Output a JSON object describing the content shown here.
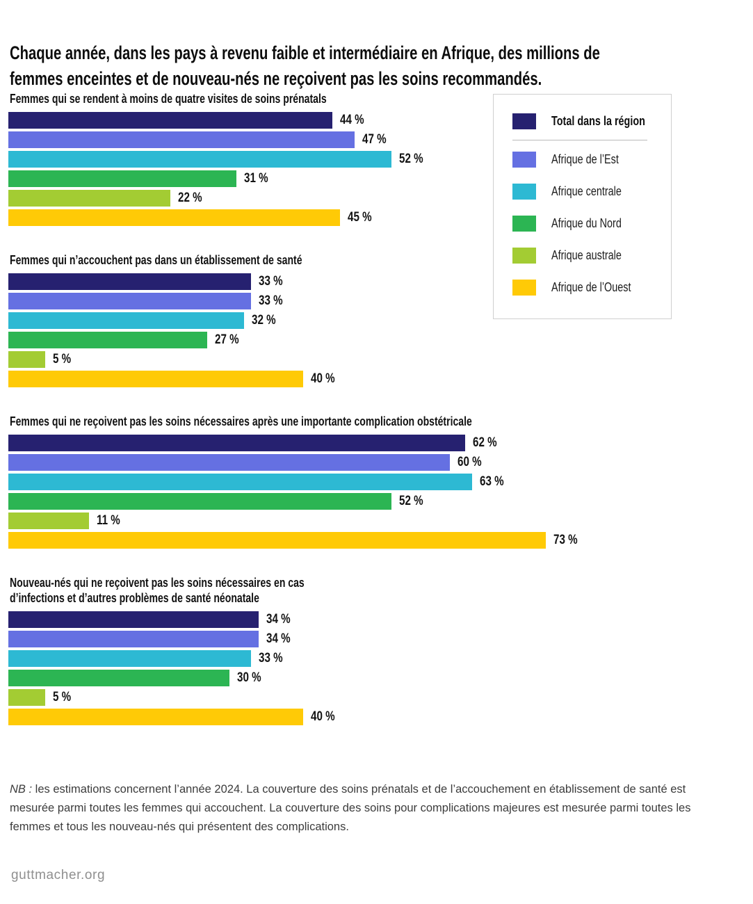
{
  "title": {
    "lines": [
      "Chaque année, dans les pays à revenu faible et intermédiaire en Afrique, des millions de",
      "femmes enceintes et de nouveau-nés ne reçoivent pas les soins recommandés."
    ]
  },
  "chart_data": {
    "type": "bar",
    "orientation": "horizontal",
    "unit": "%",
    "value_suffix": " %",
    "xlim": [
      0,
      100
    ],
    "grid": false,
    "legend_position": "top-right",
    "regions": [
      {
        "name": "Total dans la région",
        "color": "#262170",
        "emphasis": true
      },
      {
        "name": "Afrique de l’Est",
        "color": "#6570e2"
      },
      {
        "name": "Afrique centrale",
        "color": "#2db9d3"
      },
      {
        "name": "Afrique du Nord",
        "color": "#2cb553"
      },
      {
        "name": "Afrique australe",
        "color": "#a3cc33"
      },
      {
        "name": "Afrique de l’Ouest",
        "color": "#ffca06"
      }
    ],
    "groups": [
      {
        "label_lines": [
          "Femmes qui se rendent à moins de quatre visites de soins prénatals"
        ],
        "values": [
          44,
          47,
          52,
          31,
          22,
          45
        ]
      },
      {
        "label_lines": [
          "Femmes qui n’accouchent pas dans un établissement de santé"
        ],
        "values": [
          33,
          33,
          32,
          27,
          5,
          40
        ]
      },
      {
        "label_lines": [
          "Femmes qui ne reçoivent pas les soins nécessaires après une importante complication obstétricale"
        ],
        "values": [
          62,
          60,
          63,
          52,
          11,
          73
        ]
      },
      {
        "label_lines": [
          "Nouveau-nés qui ne reçoivent pas les soins nécessaires en cas",
          "d’infections et d’autres problèmes de santé néonatale"
        ],
        "values": [
          34,
          34,
          33,
          30,
          5,
          40
        ]
      }
    ]
  },
  "note": {
    "prefix": "NB :",
    "body": " les estimations concernent l’année 2024. La couverture des soins prénatals et de l’accouchement en établissement de santé est mesurée parmi toutes les femmes qui accouchent. La couverture des soins pour complications majeures est mesurée parmi toutes les femmes et tous les nouveau-nés qui présentent des complications."
  },
  "footer": {
    "site": "guttmacher.org"
  }
}
